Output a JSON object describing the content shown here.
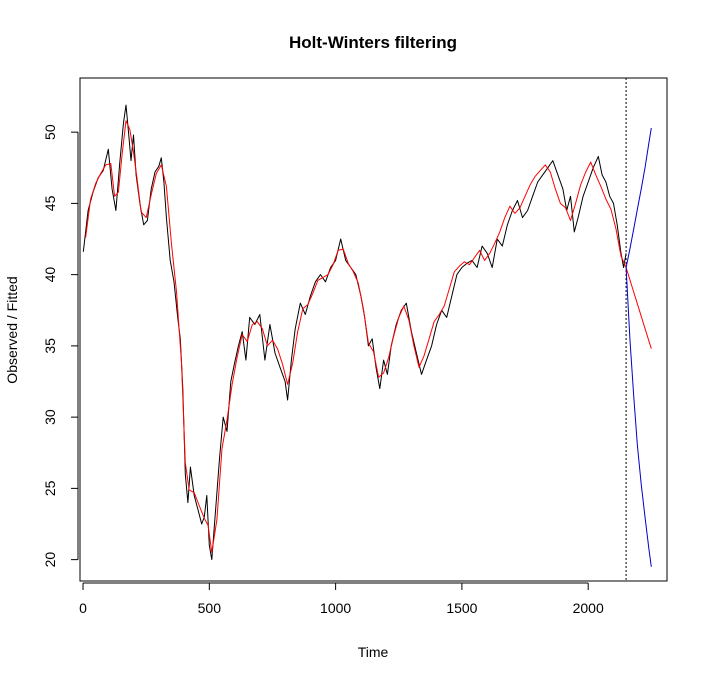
{
  "chart_data": {
    "type": "line",
    "title": "Holt-Winters filtering",
    "xlabel": "Time",
    "ylabel": "Observed / Fitted",
    "xlim": [
      -12,
      2312
    ],
    "ylim": [
      18.5,
      53.8
    ],
    "xticks": [
      0,
      500,
      1000,
      1500,
      2000
    ],
    "yticks": [
      20,
      25,
      30,
      35,
      40,
      45,
      50
    ],
    "grid": false,
    "legend": "none",
    "forecast_start": 2150,
    "series": [
      {
        "role": "observed",
        "color": "#000000",
        "x": [
          1,
          20,
          40,
          60,
          80,
          100,
          115,
          130,
          145,
          160,
          170,
          180,
          190,
          200,
          210,
          225,
          240,
          255,
          270,
          285,
          300,
          310,
          320,
          330,
          345,
          360,
          375,
          385,
          395,
          405,
          415,
          425,
          440,
          455,
          470,
          480,
          490,
          500,
          510,
          525,
          540,
          555,
          570,
          585,
          600,
          615,
          630,
          645,
          660,
          680,
          700,
          720,
          740,
          760,
          780,
          800,
          810,
          825,
          840,
          860,
          880,
          900,
          920,
          940,
          960,
          980,
          1000,
          1020,
          1040,
          1060,
          1080,
          1100,
          1115,
          1130,
          1145,
          1160,
          1175,
          1190,
          1205,
          1220,
          1240,
          1260,
          1280,
          1300,
          1320,
          1340,
          1360,
          1380,
          1400,
          1420,
          1440,
          1460,
          1480,
          1500,
          1520,
          1540,
          1560,
          1580,
          1600,
          1620,
          1640,
          1660,
          1680,
          1700,
          1720,
          1740,
          1760,
          1780,
          1800,
          1820,
          1840,
          1860,
          1880,
          1900,
          1915,
          1930,
          1945,
          1960,
          1980,
          2000,
          2020,
          2040,
          2055,
          2070,
          2085,
          2100,
          2115,
          2130,
          2140,
          2150
        ],
        "y": [
          41.6,
          44.5,
          45.8,
          46.8,
          47.3,
          48.8,
          46.0,
          44.5,
          47.8,
          50.6,
          51.9,
          50.0,
          48.0,
          49.8,
          47.0,
          45.0,
          43.5,
          43.8,
          46.0,
          47.2,
          47.6,
          48.2,
          46.5,
          44.0,
          41.0,
          39.5,
          37.0,
          35.5,
          32.0,
          26.0,
          24.0,
          26.5,
          24.5,
          23.5,
          22.5,
          23.0,
          24.5,
          21.0,
          20.0,
          23.5,
          27.0,
          30.0,
          29.0,
          32.5,
          33.8,
          35.0,
          36.0,
          34.0,
          37.0,
          36.5,
          37.2,
          34.0,
          36.5,
          34.5,
          33.5,
          32.5,
          31.2,
          34.0,
          36.2,
          38.0,
          37.2,
          38.5,
          39.5,
          40.0,
          39.5,
          40.5,
          41.0,
          42.5,
          41.0,
          40.5,
          40.0,
          38.5,
          37.0,
          35.0,
          35.5,
          33.5,
          32.0,
          34.0,
          33.0,
          35.0,
          36.5,
          37.5,
          38.0,
          36.0,
          34.5,
          33.0,
          34.0,
          35.0,
          36.5,
          37.5,
          37.0,
          38.5,
          40.0,
          40.5,
          40.8,
          41.0,
          40.5,
          42.0,
          41.5,
          40.5,
          42.5,
          42.0,
          43.5,
          44.5,
          45.2,
          44.0,
          44.5,
          45.5,
          46.5,
          47.0,
          47.5,
          48.0,
          47.0,
          46.0,
          44.5,
          45.5,
          43.0,
          44.0,
          45.5,
          46.5,
          47.5,
          48.3,
          47.0,
          46.5,
          45.5,
          45.0,
          43.5,
          41.5,
          40.5,
          41.5
        ]
      },
      {
        "role": "fitted",
        "color": "#ff0000",
        "x": [
          10,
          30,
          50,
          70,
          90,
          110,
          125,
          140,
          155,
          170,
          185,
          200,
          215,
          230,
          250,
          270,
          290,
          310,
          330,
          350,
          370,
          390,
          405,
          420,
          440,
          460,
          480,
          495,
          510,
          530,
          550,
          570,
          590,
          610,
          630,
          650,
          670,
          690,
          710,
          730,
          750,
          770,
          790,
          810,
          830,
          850,
          870,
          890,
          910,
          930,
          950,
          970,
          990,
          1010,
          1030,
          1050,
          1070,
          1090,
          1110,
          1130,
          1150,
          1170,
          1190,
          1210,
          1230,
          1250,
          1270,
          1290,
          1310,
          1330,
          1350,
          1370,
          1390,
          1410,
          1430,
          1450,
          1470,
          1490,
          1510,
          1530,
          1550,
          1570,
          1590,
          1610,
          1630,
          1650,
          1670,
          1690,
          1710,
          1730,
          1750,
          1770,
          1790,
          1810,
          1830,
          1850,
          1870,
          1890,
          1910,
          1930,
          1950,
          1970,
          1990,
          2010,
          2030,
          2050,
          2070,
          2090,
          2110,
          2130,
          2150
        ],
        "y": [
          42.6,
          45.3,
          46.4,
          47.1,
          47.7,
          47.8,
          45.5,
          45.8,
          48.5,
          50.8,
          50.2,
          48.6,
          46.6,
          44.4,
          44.0,
          45.6,
          47.1,
          47.7,
          46.2,
          42.2,
          38.8,
          33.8,
          26.8,
          24.9,
          24.7,
          23.8,
          22.9,
          22.4,
          20.5,
          22.8,
          27.8,
          29.8,
          32.3,
          34.2,
          35.8,
          35.3,
          36.5,
          36.7,
          36.2,
          35.0,
          35.4,
          34.8,
          33.7,
          32.3,
          33.8,
          36.0,
          37.6,
          37.9,
          38.7,
          39.6,
          39.8,
          40.0,
          40.7,
          41.7,
          41.8,
          40.8,
          40.2,
          39.4,
          37.6,
          35.2,
          34.6,
          32.8,
          33.1,
          34.2,
          35.7,
          37.0,
          37.8,
          36.8,
          35.0,
          33.5,
          34.3,
          35.5,
          36.7,
          37.2,
          37.8,
          39.0,
          40.2,
          40.6,
          40.9,
          40.7,
          41.2,
          41.7,
          41.0,
          41.5,
          42.2,
          43.0,
          44.0,
          44.8,
          44.3,
          44.7,
          45.5,
          46.3,
          46.9,
          47.3,
          47.7,
          47.2,
          46.0,
          45.0,
          44.7,
          43.8,
          45.0,
          46.3,
          47.2,
          47.9,
          47.0,
          46.2,
          45.3,
          44.6,
          43.2,
          41.3,
          40.5
        ]
      },
      {
        "role": "forecast",
        "color": "#ff0000",
        "x": [
          2150,
          2250
        ],
        "y": [
          40.5,
          34.8
        ]
      },
      {
        "role": "upper-bound",
        "color": "#0000cc",
        "x": [
          2150,
          2165,
          2180,
          2195,
          2210,
          2225,
          2240,
          2250
        ],
        "y": [
          40.5,
          41.8,
          43.2,
          44.6,
          46.0,
          47.5,
          49.2,
          50.3
        ]
      },
      {
        "role": "lower-bound",
        "color": "#0000cc",
        "x": [
          2150,
          2165,
          2180,
          2195,
          2210,
          2225,
          2240,
          2250
        ],
        "y": [
          40.5,
          35.5,
          31.5,
          28.0,
          25.3,
          23.0,
          20.8,
          19.5
        ]
      }
    ]
  }
}
